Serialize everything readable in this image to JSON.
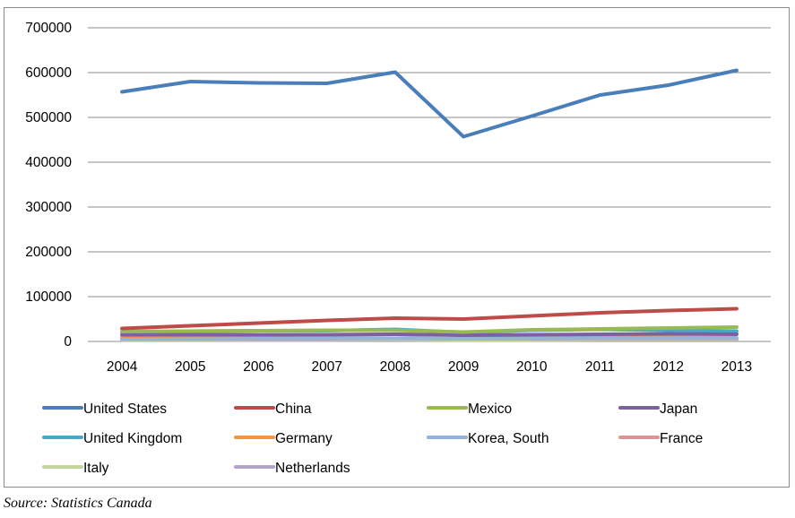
{
  "source": "Source: Statistics Canada",
  "chart_data": {
    "type": "line",
    "x": [
      "2004",
      "2005",
      "2006",
      "2007",
      "2008",
      "2009",
      "2010",
      "2011",
      "2012",
      "2013"
    ],
    "ylim": [
      0,
      700000
    ],
    "yticks": [
      "0",
      "100000",
      "200000",
      "300000",
      "400000",
      "500000",
      "600000",
      "700000"
    ],
    "grid": true,
    "legend_position": "bottom",
    "series": [
      {
        "name": "United States",
        "color": "#4a7ebb",
        "values": [
          557000,
          580000,
          577000,
          576000,
          601000,
          457000,
          503000,
          550000,
          572000,
          605000
        ]
      },
      {
        "name": "China",
        "color": "#be4b48",
        "values": [
          29000,
          35000,
          41000,
          47000,
          52000,
          50000,
          57000,
          64000,
          69000,
          73000
        ]
      },
      {
        "name": "Mexico",
        "color": "#98b954",
        "values": [
          22000,
          23000,
          24000,
          25000,
          25000,
          21000,
          26000,
          28000,
          30000,
          32000
        ]
      },
      {
        "name": "Japan",
        "color": "#7d60a0",
        "values": [
          15000,
          15000,
          15000,
          15000,
          16000,
          14000,
          15000,
          16000,
          17000,
          16000
        ]
      },
      {
        "name": "United Kingdom",
        "color": "#46aac5",
        "values": [
          20000,
          23000,
          24000,
          24000,
          27000,
          20000,
          25000,
          27000,
          25000,
          23000
        ]
      },
      {
        "name": "Germany",
        "color": "#f69240",
        "values": [
          12000,
          13000,
          14000,
          15000,
          16000,
          14000,
          14000,
          15000,
          16000,
          17000
        ]
      },
      {
        "name": "Korea, South",
        "color": "#95b3d7",
        "values": [
          6000,
          6000,
          7000,
          7000,
          7000,
          6000,
          7000,
          8000,
          8000,
          8000
        ]
      },
      {
        "name": "France",
        "color": "#d99694",
        "values": [
          6000,
          6000,
          6000,
          6000,
          7000,
          6000,
          6000,
          7000,
          7000,
          7000
        ]
      },
      {
        "name": "Italy",
        "color": "#c3d69b",
        "values": [
          5000,
          5000,
          5000,
          5000,
          5000,
          4000,
          4000,
          5000,
          5000,
          5000
        ]
      },
      {
        "name": "Netherlands",
        "color": "#b3a2c7",
        "values": [
          3000,
          3000,
          3000,
          3000,
          4000,
          3000,
          3000,
          4000,
          4000,
          4000
        ]
      }
    ]
  }
}
